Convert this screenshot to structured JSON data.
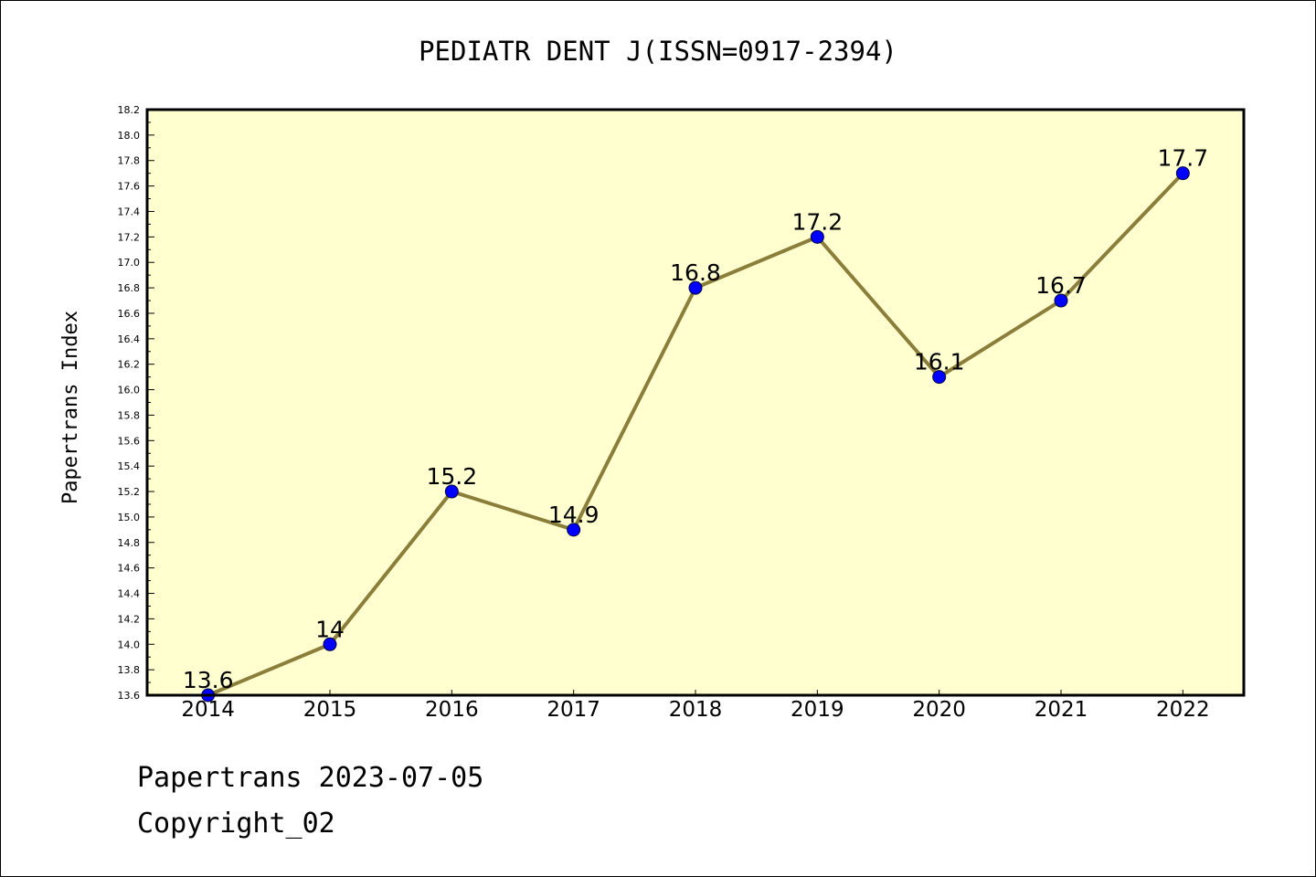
{
  "chart_data": {
    "type": "line",
    "title": "PEDIATR DENT J(ISSN=0917-2394)",
    "xlabel": "",
    "ylabel": "Papertrans Index",
    "categories": [
      "2014",
      "2015",
      "2016",
      "2017",
      "2018",
      "2019",
      "2020",
      "2021",
      "2022"
    ],
    "series": [
      {
        "values": [
          13.6,
          14,
          15.2,
          14.9,
          16.8,
          17.2,
          16.1,
          16.7,
          17.7
        ],
        "data_labels": [
          "13.6",
          "14",
          "15.2",
          "14.9",
          "16.8",
          "17.2",
          "16.1",
          "16.7",
          "17.7"
        ]
      }
    ],
    "ylim": [
      13.6,
      18.2
    ],
    "yticks": [
      "13.6",
      "13.8",
      "14.0",
      "14.2",
      "14.4",
      "14.6",
      "14.8",
      "15.0",
      "15.2",
      "15.4",
      "15.6",
      "15.8",
      "16.0",
      "16.2",
      "16.4",
      "16.6",
      "16.8",
      "17.0",
      "17.2",
      "17.4",
      "17.6",
      "17.8",
      "18.0",
      "18.2"
    ],
    "grid": false,
    "legend": "none",
    "colors": {
      "plot_background": "#ffffd0",
      "line": "#8b7d3a",
      "marker": "#0000ff",
      "axis": "#000000"
    }
  },
  "footer": {
    "date_line": "Papertrans 2023-07-05",
    "copyright_line": "Copyright_02"
  }
}
